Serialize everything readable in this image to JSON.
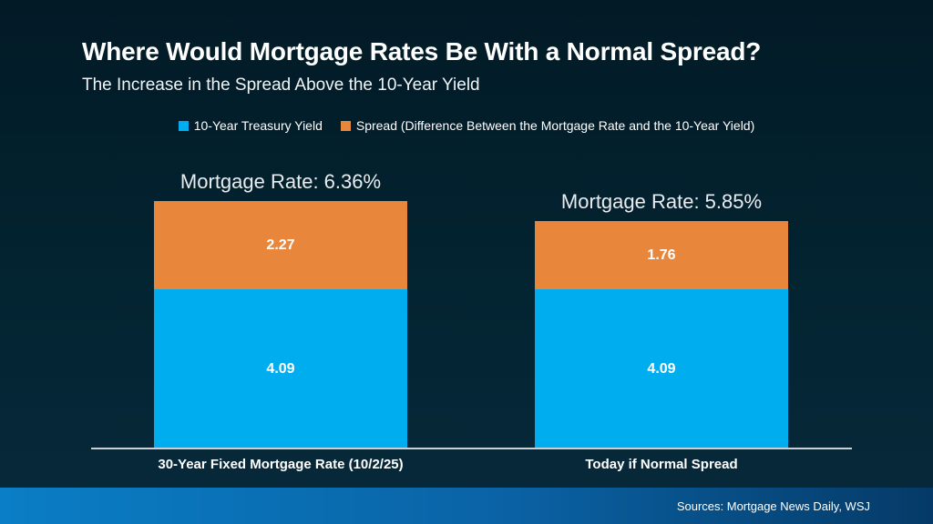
{
  "header": {
    "title": "Where Would Mortgage Rates Be With a Normal Spread?",
    "subtitle": "The Increase in the Spread Above the 10-Year Yield"
  },
  "legend": {
    "items": [
      {
        "label": "10-Year Treasury Yield",
        "color": "#00AEEF"
      },
      {
        "label": "Spread (Difference Between the Mortgage Rate and the 10-Year Yield)",
        "color": "#E8873B"
      }
    ]
  },
  "chart_data": {
    "type": "bar",
    "stacked": true,
    "orientation": "vertical",
    "title": "Where Would Mortgage Rates Be With a Normal Spread?",
    "subtitle": "The Increase in the Spread Above the 10-Year Yield",
    "categories": [
      "30-Year Fixed Mortgage Rate (10/2/25)",
      "Today if Normal Spread"
    ],
    "series": [
      {
        "name": "10-Year Treasury Yield",
        "color": "#00AEEF",
        "values": [
          4.09,
          4.09
        ]
      },
      {
        "name": "Spread (Difference Between the Mortgage Rate and the 10-Year Yield)",
        "color": "#E8873B",
        "values": [
          2.27,
          1.76
        ]
      }
    ],
    "totals": [
      "Mortgage Rate: 6.36%",
      "Mortgage Rate: 5.85%"
    ],
    "ylim": [
      0,
      6.36
    ],
    "grid": false,
    "legend_position": "top",
    "data_labels": "inside-center"
  },
  "footer": {
    "sources": "Sources: Mortgage News Daily, WSJ"
  },
  "colors": {
    "background_top": "#021A26",
    "background_bottom": "#07293A",
    "treasury_blue": "#00AEEF",
    "spread_orange": "#E8873B",
    "axis_line": "#C9D0D6",
    "footer_gradient_left": "#0A7EC6",
    "footer_gradient_right": "#053A67",
    "text": "#FFFFFF"
  }
}
